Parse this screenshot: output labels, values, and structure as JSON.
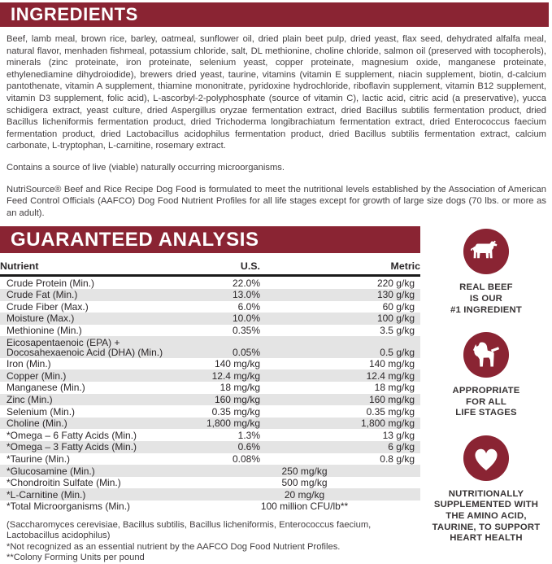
{
  "colors": {
    "maroon": "#8A2433",
    "row_alt": "#E4E4E4",
    "text_dark": "#2B2729",
    "text_body": "#413D3F",
    "rule_black": "#1A1A1A"
  },
  "ingredients": {
    "title": "INGREDIENTS",
    "paragraph": "Beef, lamb meal, brown rice, barley, oatmeal, sunflower oil, dried plain beet pulp, dried yeast, flax seed, dehydrated alfalfa meal, natural flavor, menhaden fishmeal, potassium chloride, salt, DL methionine, choline chloride, salmon oil (preserved with tocopherols), minerals (zinc proteinate, iron proteinate, selenium yeast, copper proteinate, magnesium oxide, manganese proteinate, ethylenediamine dihydroiodide), brewers dried yeast, taurine, vitamins (vitamin E supplement, niacin supplement, biotin, d-calcium pantothenate, vitamin A supplement, thiamine mononitrate, pyridoxine hydrochloride, riboflavin supplement, vitamin B12 supplement, vitamin D3 supplement, folic acid), L-ascorbyl-2-polyphosphate (source of vitamin C), lactic acid, citric acid (a preservative), yucca schidigera extract, yeast culture, dried Aspergillus oryzae fermentation extract, dried Bacillus subtilis fermentation product, dried Bacillus licheniformis fermentation product, dried Trichoderma longibrachiatum fermentation extract, dried Enterococcus faecium fermentation product, dried Lactobacillus acidophilus fermentation product, dried Bacillus subtilis fermentation extract, calcium carbonate, L-tryptophan, L-carnitine, rosemary extract.",
    "note": "Contains a source of live (viable) naturally occurring microorganisms.",
    "statement": "NutriSource® Beef and Rice Recipe Dog Food is formulated to meet the nutritional levels established by the Association of American Feed Control Officials (AAFCO) Dog Food Nutrient Profiles for all life stages except for growth of large size dogs (70 lbs. or more as an adult)."
  },
  "analysis": {
    "title": "GUARANTEED ANALYSIS",
    "columns": [
      "Nutrient",
      "U.S.",
      "Metric"
    ],
    "rows": [
      {
        "nutrient": "Crude Protein (Min.)",
        "us": "22.0%",
        "metric": "220 g/kg"
      },
      {
        "nutrient": "Crude Fat (Min.)",
        "us": "13.0%",
        "metric": "130 g/kg"
      },
      {
        "nutrient": "Crude Fiber (Max.)",
        "us": "6.0%",
        "metric": "60 g/kg"
      },
      {
        "nutrient": "Moisture (Max.)",
        "us": "10.0%",
        "metric": "100 g/kg"
      },
      {
        "nutrient": "Methionine (Min.)",
        "us": "0.35%",
        "metric": "3.5 g/kg"
      },
      {
        "nutrient": "Eicosapentaenoic (EPA) +\nDocosahexaenoic Acid (DHA) (Min.)",
        "us": "0.05%",
        "metric": "0.5 g/kg"
      },
      {
        "nutrient": "Iron (Min.)",
        "us": "140 mg/kg",
        "metric": "140 mg/kg"
      },
      {
        "nutrient": "Copper (Min.)",
        "us": "12.4 mg/kg",
        "metric": "12.4 mg/kg"
      },
      {
        "nutrient": "Manganese (Min.)",
        "us": "18 mg/kg",
        "metric": "18 mg/kg"
      },
      {
        "nutrient": "Zinc (Min.)",
        "us": "160 mg/kg",
        "metric": "160 mg/kg"
      },
      {
        "nutrient": "Selenium (Min.)",
        "us": "0.35 mg/kg",
        "metric": "0.35 mg/kg"
      },
      {
        "nutrient": "Choline (Min.)",
        "us": "1,800 mg/kg",
        "metric": "1,800 mg/kg"
      },
      {
        "nutrient": "*Omega – 6 Fatty Acids (Min.)",
        "us": "1.3%",
        "metric": "13 g/kg"
      },
      {
        "nutrient": "*Omega – 3 Fatty Acids (Min.)",
        "us": "0.6%",
        "metric": "6 g/kg"
      },
      {
        "nutrient": "*Taurine (Min.)",
        "us": "0.08%",
        "metric": "0.8 g/kg"
      },
      {
        "nutrient": "*Glucosamine (Min.)",
        "merged": "250 mg/kg"
      },
      {
        "nutrient": "*Chondroitin Sulfate (Min.)",
        "merged": "500 mg/kg"
      },
      {
        "nutrient": "*L-Carnitine (Min.)",
        "merged": "20 mg/kg"
      },
      {
        "nutrient": "*Total Microorganisms (Min.)",
        "merged": "100 million CFU/lb**"
      }
    ],
    "footnotes": [
      "(Saccharomyces cerevisiae, Bacillus subtilis, Bacillus licheniformis, Enterococcus faecium, Lactobacillus acidophilus)",
      "*Not recognized as an essential nutrient by the AAFCO Dog Food Nutrient Profiles.",
      "**Colony Forming Units per pound"
    ]
  },
  "badges": [
    {
      "icon": "cow-icon",
      "label": "REAL BEEF\nIS OUR\n#1 INGREDIENT"
    },
    {
      "icon": "dog-icon",
      "label": "APPROPRIATE\nFOR ALL\nLIFE STAGES"
    },
    {
      "icon": "heart-icon",
      "label": "NUTRITIONALLY\nSUPPLEMENTED WITH\nTHE AMINO ACID,\nTAURINE, TO SUPPORT\nHEART HEALTH"
    }
  ]
}
